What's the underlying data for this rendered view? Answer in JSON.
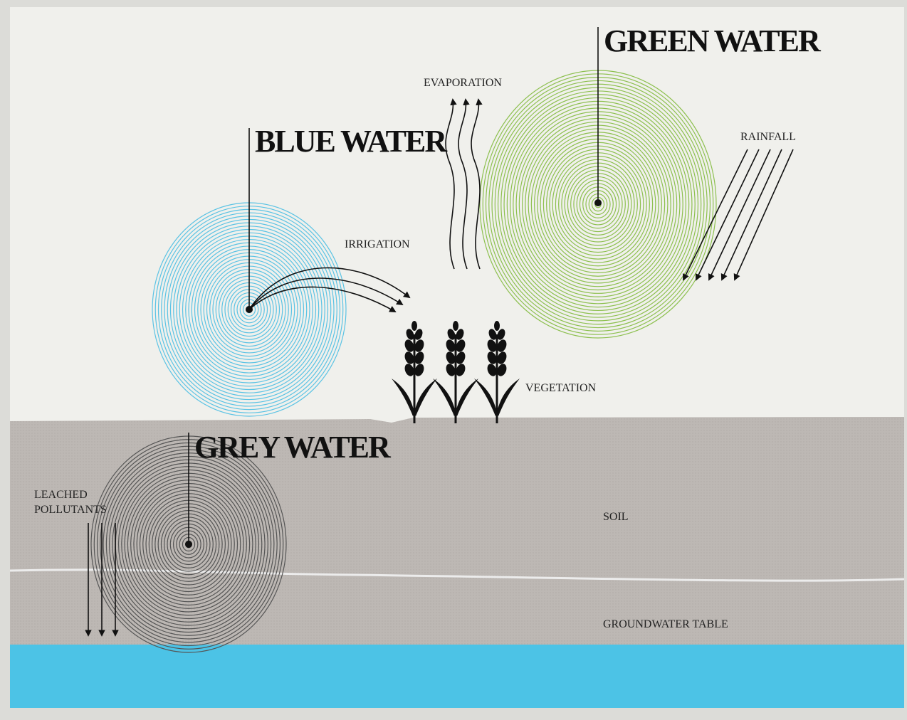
{
  "labels": {
    "green_water": "GREEN WATER",
    "blue_water": "BLUE WATER",
    "grey_water": "GREY WATER",
    "evaporation": "EVAPORATION",
    "rainfall": "RAINFALL",
    "irrigation": "IRRIGATION",
    "vegetation": "VEGETATION",
    "soil": "SOIL",
    "groundwater_table": "GROUNDWATER TABLE",
    "leached_pollutants": [
      "LEACHED",
      "POLLUTANTS"
    ]
  }
}
